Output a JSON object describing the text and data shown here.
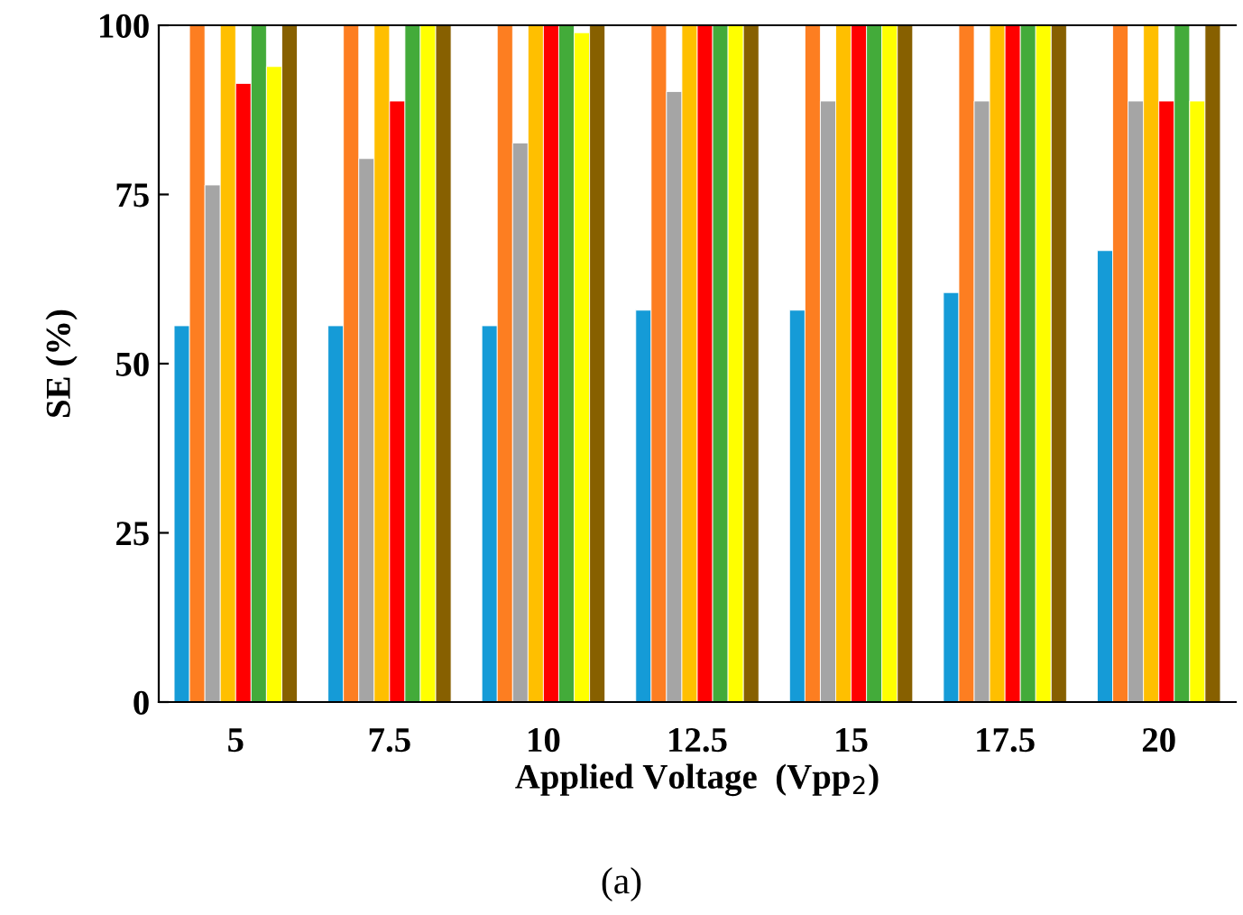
{
  "chart_data": {
    "type": "bar",
    "xlabel": "Applied Voltage  (Vpp$_{2}$)",
    "ylabel": "SE (%)",
    "annotations": [
      "(a)"
    ],
    "categories": [
      "5",
      "7.5",
      "10",
      "12.5",
      "15",
      "17.5",
      "20"
    ],
    "ylim": [
      0,
      100
    ],
    "yticks": [
      0,
      25,
      50,
      75,
      100
    ],
    "grid": false,
    "legend": false,
    "series": [
      {
        "color": "#159bd7",
        "values": [
          55.6,
          55.6,
          55.6,
          57.9,
          57.9,
          60.5,
          66.7
        ]
      },
      {
        "color": "#fd7e21",
        "values": [
          100,
          100,
          100,
          100,
          100,
          100,
          100
        ]
      },
      {
        "color": "#a5a5a5",
        "values": [
          76.4,
          80.3,
          82.6,
          90.2,
          88.8,
          88.8,
          88.8
        ]
      },
      {
        "color": "#ffbf00",
        "values": [
          100,
          100,
          100,
          100,
          100,
          100,
          100
        ]
      },
      {
        "color": "#ff0000",
        "values": [
          91.4,
          88.8,
          100,
          100,
          100,
          100,
          88.8
        ]
      },
      {
        "color": "#43ab3a",
        "values": [
          100,
          100,
          100,
          100,
          100,
          100,
          100
        ]
      },
      {
        "color": "#ffff00",
        "values": [
          93.9,
          100,
          98.9,
          100,
          100,
          100,
          88.8
        ]
      },
      {
        "color": "#876000",
        "values": [
          100,
          100,
          100,
          100,
          100,
          100,
          100
        ]
      }
    ]
  }
}
